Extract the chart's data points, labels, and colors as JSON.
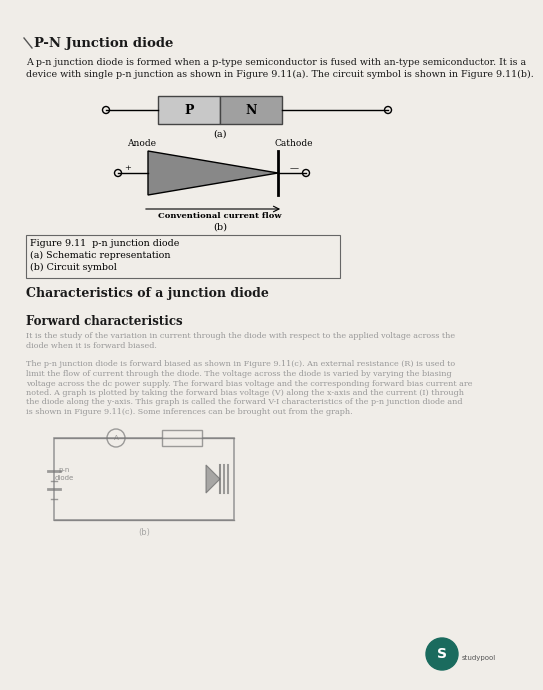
{
  "title": "P-N Junction diode",
  "body_text1_l1": "A p-n junction diode is formed when a p-type semiconductor is fused with an-type semiconductor. It is a",
  "body_text1_l2": "device with single p-n junction as shown in Figure 9.11(a). The circuit symbol is shown in Figure 9.11(b).",
  "label_a": "(a)",
  "label_b": "(b)",
  "p_label": "P",
  "n_label": "N",
  "anode_label": "Anode",
  "cathode_label": "Cathode",
  "plus_label": "+",
  "conventional_label": "Conventional current flow",
  "fig_caption_line1": "Figure 9.11  p-n junction diode",
  "fig_caption_line2": "(a) Schematic representation",
  "fig_caption_line3": "(b) Circuit symbol",
  "section_heading": "Characteristics of a junction diode",
  "subsection_heading": "Forward characteristics",
  "blurred_para1_l1": "It is the study of the variation in current through the diode with respect to the applied voltage across the",
  "blurred_para1_l2": "diode when it is forward biased.",
  "blurred_para2_l1": "The p-n junction diode is forward biased as shown in Figure 9.11(c). An external resistance (R) is used to",
  "blurred_para2_l2": "limit the flow of current through the diode. The voltage across the diode is varied by varying the biasing",
  "blurred_para2_l3": "voltage across the dc power supply. The forward bias voltage and the corresponding forward bias current are",
  "blurred_para2_l4": "noted. A graph is plotted by taking the forward bias voltage (V) along the x-axis and the current (I) through",
  "blurred_para2_l5": "the diode along the y-axis. This graph is called the forward V-I characteristics of the p-n junction diode and",
  "blurred_para2_l6": "is shown in Figure 9.11(c). Some inferences can be brought out from the graph.",
  "bg_color": "#f0ede8",
  "text_color": "#1a1a1a",
  "blurred_color": "#999999",
  "diag_gray_light": "#c8c8c8",
  "diag_gray_dark": "#a0a0a0",
  "page_width": 4.74,
  "page_height": 6.7,
  "title_fontsize": 9.5,
  "body_fontsize": 6.8,
  "section_fontsize": 9.0,
  "subsection_fontsize": 8.5,
  "blurred_fontsize": 5.8,
  "caption_fontsize": 6.8
}
